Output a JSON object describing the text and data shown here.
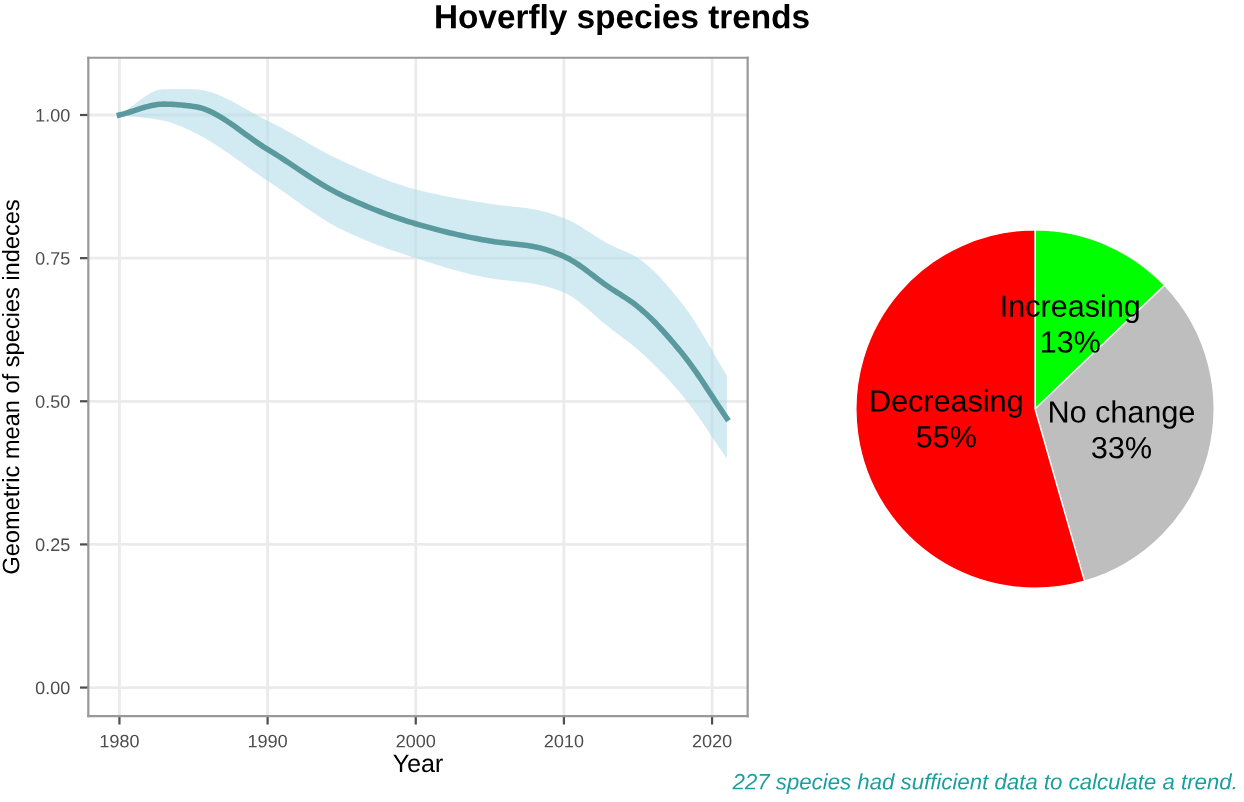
{
  "chart_data": [
    {
      "type": "line",
      "title": "Hoverfly species trends",
      "xlabel": "Year",
      "ylabel": "Geometric mean of species indeces",
      "xlim": [
        1977.9,
        2022.4
      ],
      "ylim": [
        -0.05,
        1.1
      ],
      "xticks": [
        1980,
        1990,
        2000,
        2010,
        2020
      ],
      "yticks": [
        {
          "value": 0,
          "label": "0.00"
        },
        {
          "value": 0.25,
          "label": "0.25"
        },
        {
          "value": 0.5,
          "label": "0.50"
        },
        {
          "value": 0.75,
          "label": "0.75"
        },
        {
          "value": 1,
          "label": "1.00"
        }
      ],
      "grid": true,
      "legend": false,
      "marker": "none",
      "line_style": "solid",
      "series": [
        {
          "color": "#5a9a9e",
          "x": [
            1980,
            1983,
            1985,
            1990,
            1995,
            2000,
            2005,
            2008,
            2010,
            2013,
            2015,
            2018,
            2021
          ],
          "values": [
            1.0,
            1.019,
            1.015,
            0.94,
            0.86,
            0.81,
            0.78,
            0.77,
            0.753,
            0.7,
            0.665,
            0.583,
            0.47
          ],
          "lower": [
            1.0,
            0.99,
            0.97,
            0.885,
            0.8,
            0.75,
            0.715,
            0.705,
            0.69,
            0.63,
            0.59,
            0.51,
            0.4
          ],
          "upper": [
            1.0,
            1.045,
            1.045,
            0.99,
            0.92,
            0.87,
            0.845,
            0.835,
            0.82,
            0.775,
            0.75,
            0.67,
            0.545
          ]
        }
      ]
    },
    {
      "type": "pie",
      "categories": [
        "Increasing",
        "No change",
        "Decreasing"
      ],
      "values": [
        13,
        33,
        55
      ],
      "colors": [
        "#00ff00",
        "#bebebe",
        "#ff0000"
      ],
      "value_labels": [
        "13%",
        "33%",
        "55%"
      ],
      "annotations": [
        "227 species had sufficient data to calculate a trend."
      ]
    }
  ]
}
